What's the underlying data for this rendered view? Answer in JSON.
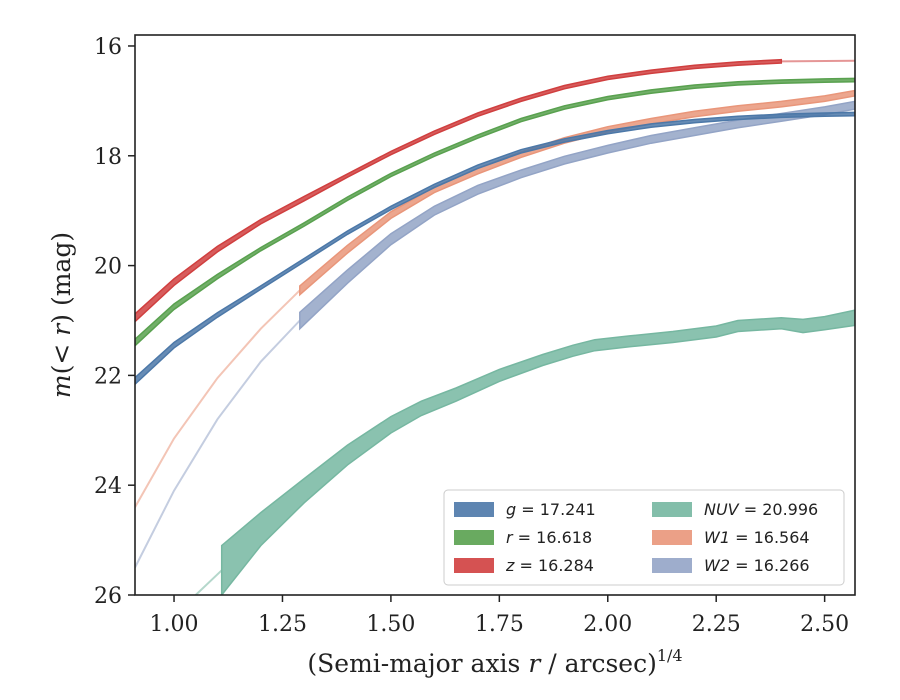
{
  "chart_data": {
    "type": "area",
    "xlabel": "(Semi-major axis r / arcsec)",
    "xlabel_italic": "r",
    "xlabel_sup": "1/4",
    "ylabel": "m(< r) (mag)",
    "xlim": [
      0.91,
      2.57
    ],
    "ylim": [
      26.0,
      15.8
    ],
    "y_inverted": true,
    "x_ticks": [
      "1.00",
      "1.25",
      "1.50",
      "1.75",
      "2.00",
      "2.25",
      "2.50"
    ],
    "y_ticks": [
      "16",
      "18",
      "20",
      "22",
      "24",
      "26"
    ],
    "grid": false,
    "legend": {
      "placement": "lower-right",
      "columns": 2
    },
    "series": [
      {
        "name": "g",
        "value": "17.241",
        "legend_label": "g = 17.241",
        "color": "#4c78a8",
        "x": [
          0.91,
          1.0,
          1.1,
          1.2,
          1.3,
          1.4,
          1.5,
          1.6,
          1.7,
          1.8,
          1.9,
          2.0,
          2.1,
          2.2,
          2.3,
          2.4,
          2.5,
          2.57
        ],
        "y": [
          22.1,
          21.45,
          20.9,
          20.4,
          19.9,
          19.4,
          18.95,
          18.55,
          18.2,
          17.92,
          17.72,
          17.57,
          17.45,
          17.37,
          17.31,
          17.27,
          17.25,
          17.24
        ],
        "half_width": [
          0.06,
          0.05,
          0.04,
          0.03,
          0.03,
          0.03,
          0.03,
          0.03,
          0.03,
          0.03,
          0.03,
          0.03,
          0.03,
          0.03,
          0.03,
          0.03,
          0.03,
          0.03
        ]
      },
      {
        "name": "r",
        "value": "16.618",
        "legend_label": "r = 16.618",
        "color": "#59a14f",
        "x": [
          0.91,
          1.0,
          1.1,
          1.2,
          1.3,
          1.4,
          1.5,
          1.6,
          1.7,
          1.8,
          1.9,
          2.0,
          2.1,
          2.2,
          2.3,
          2.4,
          2.5,
          2.57
        ],
        "y": [
          21.4,
          20.75,
          20.2,
          19.7,
          19.25,
          18.78,
          18.35,
          17.98,
          17.65,
          17.35,
          17.12,
          16.95,
          16.83,
          16.74,
          16.68,
          16.65,
          16.63,
          16.62
        ],
        "half_width": [
          0.06,
          0.05,
          0.04,
          0.03,
          0.03,
          0.03,
          0.03,
          0.03,
          0.03,
          0.03,
          0.03,
          0.03,
          0.03,
          0.03,
          0.03,
          0.03,
          0.03,
          0.03
        ]
      },
      {
        "name": "z",
        "value": "16.284",
        "legend_label": "z = 16.284",
        "color": "#d03f3f",
        "x": [
          0.91,
          1.0,
          1.1,
          1.2,
          1.3,
          1.4,
          1.5,
          1.6,
          1.7,
          1.8,
          1.9,
          2.0,
          2.1,
          2.2,
          2.3,
          2.4
        ],
        "y": [
          20.95,
          20.3,
          19.7,
          19.2,
          18.78,
          18.36,
          17.95,
          17.58,
          17.25,
          16.98,
          16.75,
          16.58,
          16.47,
          16.38,
          16.32,
          16.28
        ],
        "half_width": [
          0.07,
          0.06,
          0.05,
          0.04,
          0.04,
          0.03,
          0.03,
          0.03,
          0.03,
          0.03,
          0.03,
          0.03,
          0.03,
          0.03,
          0.03,
          0.03
        ],
        "faint_extension": {
          "x": [
            2.4,
            2.57
          ],
          "y": [
            16.28,
            16.27
          ]
        }
      },
      {
        "name": "NUV",
        "value": "20.996",
        "legend_label": "NUV = 20.996",
        "color": "#76b7a1",
        "x": [
          1.11,
          1.2,
          1.3,
          1.4,
          1.5,
          1.57,
          1.65,
          1.75,
          1.85,
          1.92,
          1.97,
          2.05,
          2.15,
          2.25,
          2.3,
          2.4,
          2.45,
          2.5,
          2.57
        ],
        "y": [
          25.55,
          24.8,
          24.1,
          23.45,
          22.9,
          22.6,
          22.35,
          22.0,
          21.72,
          21.55,
          21.45,
          21.38,
          21.3,
          21.2,
          21.1,
          21.05,
          21.1,
          21.05,
          20.95
        ],
        "half_width": [
          0.45,
          0.3,
          0.22,
          0.18,
          0.15,
          0.13,
          0.12,
          0.11,
          0.1,
          0.1,
          0.1,
          0.1,
          0.1,
          0.1,
          0.1,
          0.1,
          0.12,
          0.12,
          0.14
        ],
        "faint": {
          "x": [
            1.05,
            1.11
          ],
          "y": [
            26.0,
            25.55
          ]
        }
      },
      {
        "name": "W1",
        "value": "16.564",
        "legend_label": "W1 = 16.564",
        "color": "#e9967a",
        "x": [
          1.29,
          1.4,
          1.5,
          1.6,
          1.7,
          1.8,
          1.9,
          2.0,
          2.1,
          2.2,
          2.3,
          2.4,
          2.5,
          2.57
        ],
        "y": [
          20.45,
          19.7,
          19.08,
          18.62,
          18.28,
          17.98,
          17.72,
          17.52,
          17.37,
          17.24,
          17.14,
          17.06,
          16.96,
          16.86
        ],
        "half_width": [
          0.08,
          0.07,
          0.06,
          0.05,
          0.05,
          0.05,
          0.05,
          0.05,
          0.05,
          0.05,
          0.05,
          0.05,
          0.05,
          0.05
        ],
        "faint": {
          "x": [
            0.91,
            1.0,
            1.1,
            1.2,
            1.29
          ],
          "y": [
            24.4,
            23.15,
            22.05,
            21.15,
            20.45
          ]
        }
      },
      {
        "name": "W2",
        "value": "16.266",
        "legend_label": "W2 = 16.266",
        "color": "#93a4c6",
        "x": [
          1.29,
          1.4,
          1.5,
          1.6,
          1.7,
          1.8,
          1.9,
          2.0,
          2.1,
          2.2,
          2.3,
          2.4,
          2.5,
          2.57
        ],
        "y": [
          21.0,
          20.2,
          19.52,
          19.0,
          18.62,
          18.33,
          18.08,
          17.88,
          17.7,
          17.56,
          17.42,
          17.3,
          17.18,
          17.08
        ],
        "half_width": [
          0.15,
          0.12,
          0.1,
          0.08,
          0.08,
          0.07,
          0.07,
          0.07,
          0.07,
          0.07,
          0.07,
          0.07,
          0.07,
          0.07
        ],
        "faint": {
          "x": [
            0.91,
            1.0,
            1.1,
            1.2,
            1.29
          ],
          "y": [
            25.5,
            24.1,
            22.8,
            21.75,
            21.0
          ]
        }
      }
    ]
  }
}
